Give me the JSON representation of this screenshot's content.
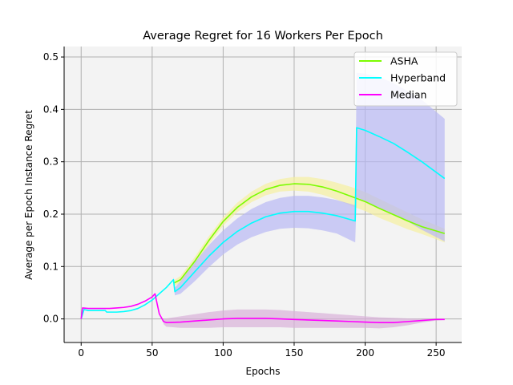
{
  "chart_data": {
    "type": "line",
    "title": "Average Regret for 16 Workers Per Epoch",
    "xlabel": "Epochs",
    "ylabel": "Average per Epoch Instance Regret",
    "xlim": [
      -12,
      268
    ],
    "ylim": [
      -0.045,
      0.52
    ],
    "xticks": [
      0,
      50,
      100,
      150,
      200,
      250
    ],
    "yticks": [
      0.0,
      0.1,
      0.2,
      0.3,
      0.4,
      0.5
    ],
    "grid": true,
    "legend_position": "top-right",
    "series": [
      {
        "name": "ASHA",
        "color": "#7cfc00",
        "band_color": "#f5f0a0",
        "points": [
          [
            65,
            0.068
          ],
          [
            70,
            0.075
          ],
          [
            80,
            0.11
          ],
          [
            90,
            0.15
          ],
          [
            100,
            0.186
          ],
          [
            110,
            0.213
          ],
          [
            120,
            0.233
          ],
          [
            130,
            0.247
          ],
          [
            140,
            0.255
          ],
          [
            150,
            0.258
          ],
          [
            160,
            0.257
          ],
          [
            170,
            0.252
          ],
          [
            180,
            0.244
          ],
          [
            190,
            0.234
          ],
          [
            200,
            0.224
          ],
          [
            210,
            0.211
          ],
          [
            220,
            0.199
          ],
          [
            230,
            0.187
          ],
          [
            240,
            0.176
          ],
          [
            256,
            0.163
          ]
        ],
        "band_upper": [
          [
            65,
            0.073
          ],
          [
            70,
            0.082
          ],
          [
            80,
            0.118
          ],
          [
            90,
            0.158
          ],
          [
            100,
            0.194
          ],
          [
            110,
            0.222
          ],
          [
            120,
            0.243
          ],
          [
            130,
            0.258
          ],
          [
            140,
            0.267
          ],
          [
            150,
            0.271
          ],
          [
            160,
            0.271
          ],
          [
            170,
            0.267
          ],
          [
            180,
            0.26
          ],
          [
            190,
            0.252
          ],
          [
            200,
            0.242
          ],
          [
            210,
            0.229
          ],
          [
            220,
            0.216
          ],
          [
            230,
            0.203
          ],
          [
            240,
            0.19
          ],
          [
            256,
            0.172
          ]
        ],
        "band_lower": [
          [
            65,
            0.063
          ],
          [
            70,
            0.068
          ],
          [
            80,
            0.102
          ],
          [
            90,
            0.142
          ],
          [
            100,
            0.178
          ],
          [
            110,
            0.204
          ],
          [
            120,
            0.223
          ],
          [
            130,
            0.236
          ],
          [
            140,
            0.243
          ],
          [
            150,
            0.245
          ],
          [
            160,
            0.243
          ],
          [
            170,
            0.237
          ],
          [
            180,
            0.228
          ],
          [
            190,
            0.216
          ],
          [
            200,
            0.206
          ],
          [
            210,
            0.193
          ],
          [
            220,
            0.182
          ],
          [
            230,
            0.171
          ],
          [
            240,
            0.162
          ],
          [
            256,
            0.146
          ]
        ]
      },
      {
        "name": "Hyperband",
        "color": "#00ffff",
        "band_color": "#b8b8f4",
        "points": [
          [
            0,
            0.0
          ],
          [
            2,
            0.018
          ],
          [
            5,
            0.016
          ],
          [
            10,
            0.016
          ],
          [
            17,
            0.016
          ],
          [
            18,
            0.013
          ],
          [
            25,
            0.013
          ],
          [
            30,
            0.014
          ],
          [
            35,
            0.016
          ],
          [
            40,
            0.02
          ],
          [
            45,
            0.027
          ],
          [
            50,
            0.036
          ],
          [
            55,
            0.048
          ],
          [
            60,
            0.06
          ],
          [
            65,
            0.075
          ],
          [
            66,
            0.052
          ],
          [
            70,
            0.06
          ],
          [
            80,
            0.09
          ],
          [
            90,
            0.12
          ],
          [
            100,
            0.146
          ],
          [
            110,
            0.167
          ],
          [
            120,
            0.183
          ],
          [
            130,
            0.195
          ],
          [
            140,
            0.202
          ],
          [
            150,
            0.205
          ],
          [
            160,
            0.205
          ],
          [
            170,
            0.202
          ],
          [
            180,
            0.197
          ],
          [
            193,
            0.187
          ],
          [
            194,
            0.365
          ],
          [
            200,
            0.36
          ],
          [
            210,
            0.348
          ],
          [
            220,
            0.335
          ],
          [
            230,
            0.318
          ],
          [
            240,
            0.3
          ],
          [
            256,
            0.268
          ]
        ],
        "band_upper": [
          [
            65,
            0.08
          ],
          [
            66,
            0.06
          ],
          [
            70,
            0.072
          ],
          [
            80,
            0.108
          ],
          [
            90,
            0.141
          ],
          [
            100,
            0.169
          ],
          [
            110,
            0.192
          ],
          [
            120,
            0.21
          ],
          [
            130,
            0.223
          ],
          [
            140,
            0.231
          ],
          [
            150,
            0.235
          ],
          [
            160,
            0.235
          ],
          [
            170,
            0.232
          ],
          [
            180,
            0.227
          ],
          [
            193,
            0.217
          ],
          [
            194,
            0.47
          ],
          [
            200,
            0.468
          ],
          [
            210,
            0.462
          ],
          [
            220,
            0.45
          ],
          [
            230,
            0.435
          ],
          [
            240,
            0.418
          ],
          [
            256,
            0.382
          ]
        ],
        "band_lower": [
          [
            65,
            0.07
          ],
          [
            66,
            0.045
          ],
          [
            70,
            0.048
          ],
          [
            80,
            0.072
          ],
          [
            90,
            0.099
          ],
          [
            100,
            0.123
          ],
          [
            110,
            0.142
          ],
          [
            120,
            0.156
          ],
          [
            130,
            0.166
          ],
          [
            140,
            0.172
          ],
          [
            150,
            0.174
          ],
          [
            160,
            0.173
          ],
          [
            170,
            0.169
          ],
          [
            180,
            0.163
          ],
          [
            193,
            0.146
          ],
          [
            194,
            0.232
          ],
          [
            200,
            0.225
          ],
          [
            210,
            0.212
          ],
          [
            220,
            0.2
          ],
          [
            230,
            0.186
          ],
          [
            240,
            0.17
          ],
          [
            256,
            0.148
          ]
        ]
      },
      {
        "name": "Median",
        "color": "#ff00ff",
        "band_color": "#d8b0d8",
        "points": [
          [
            0,
            0.0
          ],
          [
            1,
            0.021
          ],
          [
            5,
            0.02
          ],
          [
            10,
            0.02
          ],
          [
            15,
            0.02
          ],
          [
            20,
            0.02
          ],
          [
            25,
            0.021
          ],
          [
            30,
            0.022
          ],
          [
            35,
            0.024
          ],
          [
            40,
            0.028
          ],
          [
            45,
            0.034
          ],
          [
            50,
            0.042
          ],
          [
            52,
            0.048
          ],
          [
            55,
            0.01
          ],
          [
            58,
            -0.005
          ],
          [
            60,
            -0.007
          ],
          [
            70,
            -0.006
          ],
          [
            80,
            -0.004
          ],
          [
            90,
            -0.002
          ],
          [
            100,
            0.0
          ],
          [
            110,
            0.001
          ],
          [
            120,
            0.001
          ],
          [
            130,
            0.001
          ],
          [
            140,
            0.0
          ],
          [
            150,
            -0.001
          ],
          [
            160,
            -0.002
          ],
          [
            170,
            -0.003
          ],
          [
            180,
            -0.004
          ],
          [
            190,
            -0.005
          ],
          [
            200,
            -0.006
          ],
          [
            210,
            -0.007
          ],
          [
            220,
            -0.007
          ],
          [
            230,
            -0.005
          ],
          [
            240,
            -0.003
          ],
          [
            250,
            -0.001
          ],
          [
            256,
            -0.001
          ]
        ],
        "band_upper": [
          [
            58,
            0.0
          ],
          [
            60,
            0.001
          ],
          [
            70,
            0.005
          ],
          [
            80,
            0.009
          ],
          [
            90,
            0.013
          ],
          [
            100,
            0.016
          ],
          [
            110,
            0.018
          ],
          [
            120,
            0.018
          ],
          [
            130,
            0.018
          ],
          [
            140,
            0.017
          ],
          [
            150,
            0.015
          ],
          [
            160,
            0.013
          ],
          [
            170,
            0.011
          ],
          [
            180,
            0.009
          ],
          [
            190,
            0.007
          ],
          [
            200,
            0.005
          ],
          [
            210,
            0.003
          ],
          [
            220,
            0.002
          ],
          [
            230,
            0.001
          ],
          [
            240,
            0.0
          ],
          [
            250,
            0.0
          ],
          [
            256,
            0.0
          ]
        ],
        "band_lower": [
          [
            58,
            -0.01
          ],
          [
            60,
            -0.015
          ],
          [
            70,
            -0.017
          ],
          [
            80,
            -0.017
          ],
          [
            90,
            -0.017
          ],
          [
            100,
            -0.016
          ],
          [
            110,
            -0.016
          ],
          [
            120,
            -0.016
          ],
          [
            130,
            -0.016
          ],
          [
            140,
            -0.016
          ],
          [
            150,
            -0.017
          ],
          [
            160,
            -0.017
          ],
          [
            170,
            -0.017
          ],
          [
            180,
            -0.017
          ],
          [
            190,
            -0.017
          ],
          [
            200,
            -0.017
          ],
          [
            210,
            -0.018
          ],
          [
            220,
            -0.016
          ],
          [
            230,
            -0.012
          ],
          [
            240,
            -0.007
          ],
          [
            250,
            -0.003
          ],
          [
            256,
            -0.002
          ]
        ]
      }
    ]
  }
}
